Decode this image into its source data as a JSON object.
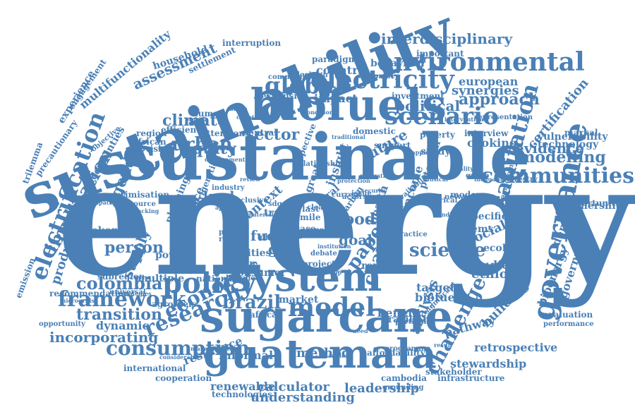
{
  "colors": {
    "word": "#4a80b6",
    "background": "#ffffff"
  },
  "words": [
    "energy",
    "sustainable",
    "sustainability",
    "biofuels",
    "sugarcane",
    "guatemala",
    "system",
    "environmental",
    "electricity",
    "governance",
    "scenario",
    "policy",
    "model",
    "communities",
    "consumption",
    "global",
    "framework",
    "research",
    "economic",
    "brazil",
    "urban",
    "science",
    "electrification",
    "implication",
    "sanitation",
    "challenge",
    "interdisciplinary",
    "assessment",
    "modelling",
    "colombia",
    "transition",
    "incorporating",
    "agenda",
    "political",
    "approach",
    "equity",
    "climate",
    "sector",
    "evidence",
    "change",
    "paper",
    "food",
    "goal",
    "future",
    "vulnerability",
    "technology",
    "certification",
    "synergies",
    "european",
    "countrie",
    "impact",
    "fuel",
    "acc",
    "grid",
    "dynamic",
    "person",
    "supply",
    "production",
    "bioenergy",
    "government",
    "ethiopia",
    "studies",
    "ecology",
    "social",
    "demand",
    "partnership",
    "biofuel",
    "target",
    "method",
    "calculator",
    "leadership",
    "renewable",
    "understanding",
    "stewardship",
    "stakeholder",
    "retrospective",
    "pathway",
    "building",
    "analysis",
    "benefit",
    "brazilian",
    "market",
    "africa",
    "informal",
    "resilience",
    "international",
    "cooperation",
    "infrastructure",
    "evaluation",
    "performance",
    "cooking",
    "interview",
    "study",
    "poverty",
    "land",
    "trade",
    "area",
    "case",
    "context",
    "rural",
    "mile",
    "last",
    "sdgs",
    "cities",
    "choice",
    "power",
    "justice",
    "planning",
    "refrigeration",
    "agrofuels",
    "national",
    "multiple",
    "consumer",
    "action",
    "project",
    "report",
    "health",
    "carbon",
    "income",
    "potential",
    "modern",
    "specific",
    "ubems",
    "markal",
    "opportunities",
    "optimisation",
    "mekong",
    "subregion",
    "emission",
    "recommendation",
    "opportunity",
    "uncertainties",
    "trilemma",
    "precautionary",
    "experience",
    "engagement",
    "multifunctionality",
    "household",
    "settlement",
    "interruption",
    "paradigm",
    "behaviour",
    "important",
    "decision",
    "community",
    "diplomacy",
    "expansion",
    "investment",
    "domestic",
    "support",
    "region",
    "african",
    "provision",
    "efficiency",
    "attention",
    "human",
    "central",
    "objective",
    "resource",
    "unpacking",
    "universal",
    "strategies",
    "microgrids",
    "affordability",
    "programme",
    "cambodia",
    "grounding",
    "technologies",
    "considerable",
    "management",
    "significant",
    "availability",
    "historical",
    "network",
    "forestry",
    "inequality",
    "representation",
    "intervention",
    "biomedicine",
    "perspective",
    "relationship",
    "greater",
    "insight",
    "clean",
    "practice",
    "industry",
    "policies",
    "require",
    "linkage",
    "debate",
    "inclusive",
    "current",
    "actors",
    "issue",
    "need",
    "group",
    "union",
    "condition",
    "traditional",
    "mapping",
    "institution",
    "relevant",
    "ownership",
    "material",
    "example",
    "finding",
    "result",
    "review",
    "approach",
    "quality",
    "mitigation",
    "security",
    "protection",
    "development",
    "capacity",
    "provide",
    "countdown",
    "musical",
    "particular",
    "limits",
    "affordable",
    "america"
  ]
}
